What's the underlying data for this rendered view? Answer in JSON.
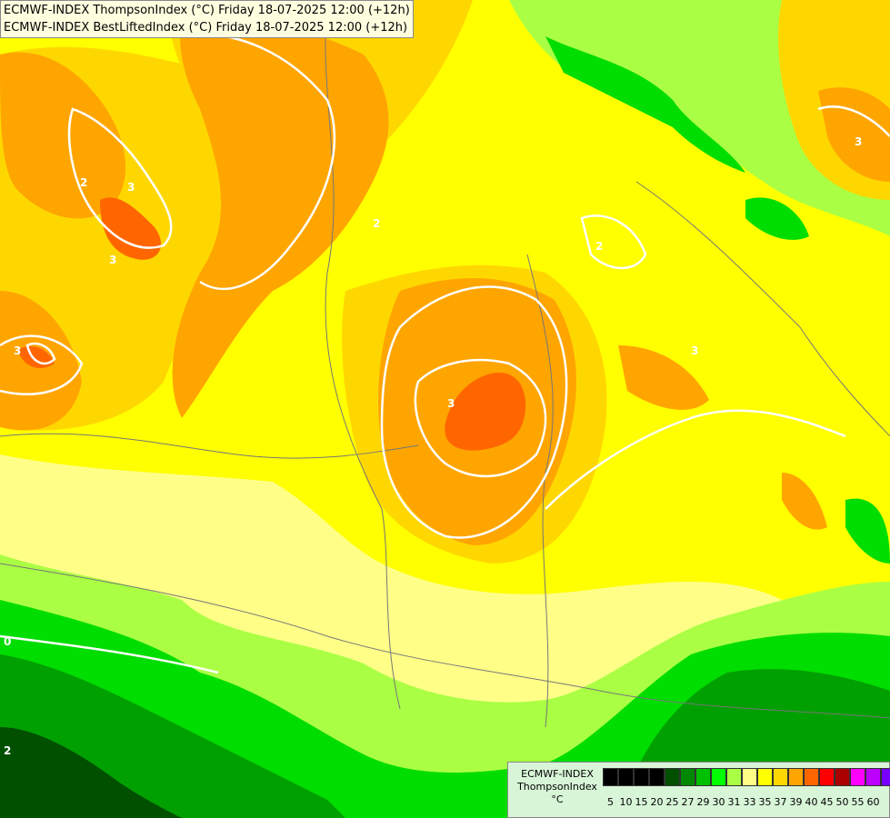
{
  "titles": [
    "ECMWF-INDEX ThompsonIndex (°C) Friday 18-07-2025 12:00 (+12h)",
    "ECMWF-INDEX BestLiftedIndex (°C) Friday 18-07-2025 12:00 (+12h)"
  ],
  "legend": {
    "line1": "ECMWF-INDEX",
    "line2": "ThompsonIndex",
    "line3": "°C",
    "colors": [
      "#000000",
      "#000000",
      "#000000",
      "#000000",
      "#005000",
      "#008800",
      "#00c000",
      "#00ff00",
      "#aaff44",
      "#ffff88",
      "#ffff00",
      "#ffd700",
      "#ffa500",
      "#ff6600",
      "#ff0000",
      "#aa0000",
      "#ff00ff",
      "#bb00ff",
      "#7700ff",
      "#0000ff"
    ],
    "ticks": [
      "5",
      "10",
      "15",
      "20",
      "25",
      "27",
      "29",
      "30",
      "31",
      "33",
      "35",
      "37",
      "39",
      "40",
      "45",
      "50",
      "55",
      "60"
    ]
  },
  "contour_labels": [
    "3",
    "3",
    "3",
    "2",
    "2",
    "3",
    "3",
    "3",
    "2",
    "0",
    "2"
  ],
  "colors": {
    "green_dark": "#005000",
    "green": "#00a000",
    "green_light": "#00dd00",
    "lime": "#aaff44",
    "pale_yellow": "#ffff88",
    "yellow": "#ffff00",
    "gold": "#ffd700",
    "orange": "#ffa500",
    "deep_orange": "#ff6600",
    "contour": "#ffffff",
    "border": "#777777"
  }
}
